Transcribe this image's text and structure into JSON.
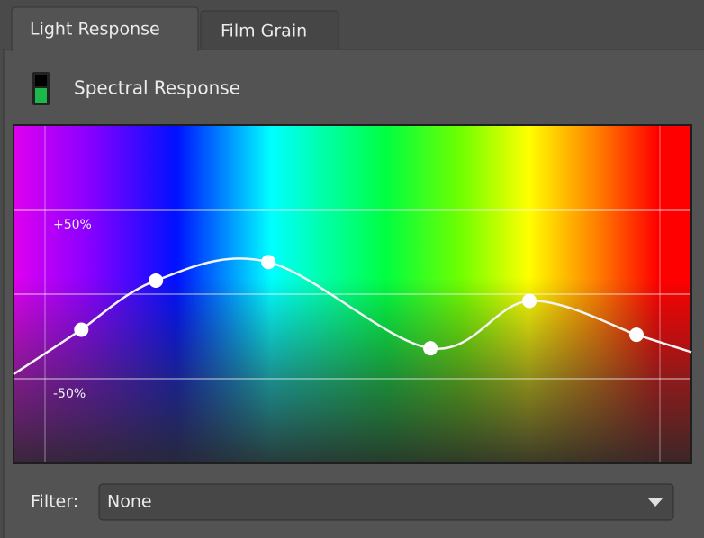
{
  "tabs": [
    "Light Response",
    "Film Grain"
  ],
  "section": {
    "title": "Spectral Response"
  },
  "graph": {
    "xlim": [
      0,
      1
    ],
    "ylim": [
      -100,
      100
    ],
    "yticks": [
      {
        "value": 50,
        "label": "+50%"
      },
      {
        "value": -50,
        "label": "-50%"
      }
    ],
    "points": {
      "x": [
        0.1,
        0.21,
        0.376,
        0.615,
        0.761,
        0.919
      ],
      "y": [
        -21,
        8,
        19,
        -32,
        -4,
        -24
      ]
    }
  },
  "filter": {
    "label": "Filter:",
    "value": "None"
  }
}
